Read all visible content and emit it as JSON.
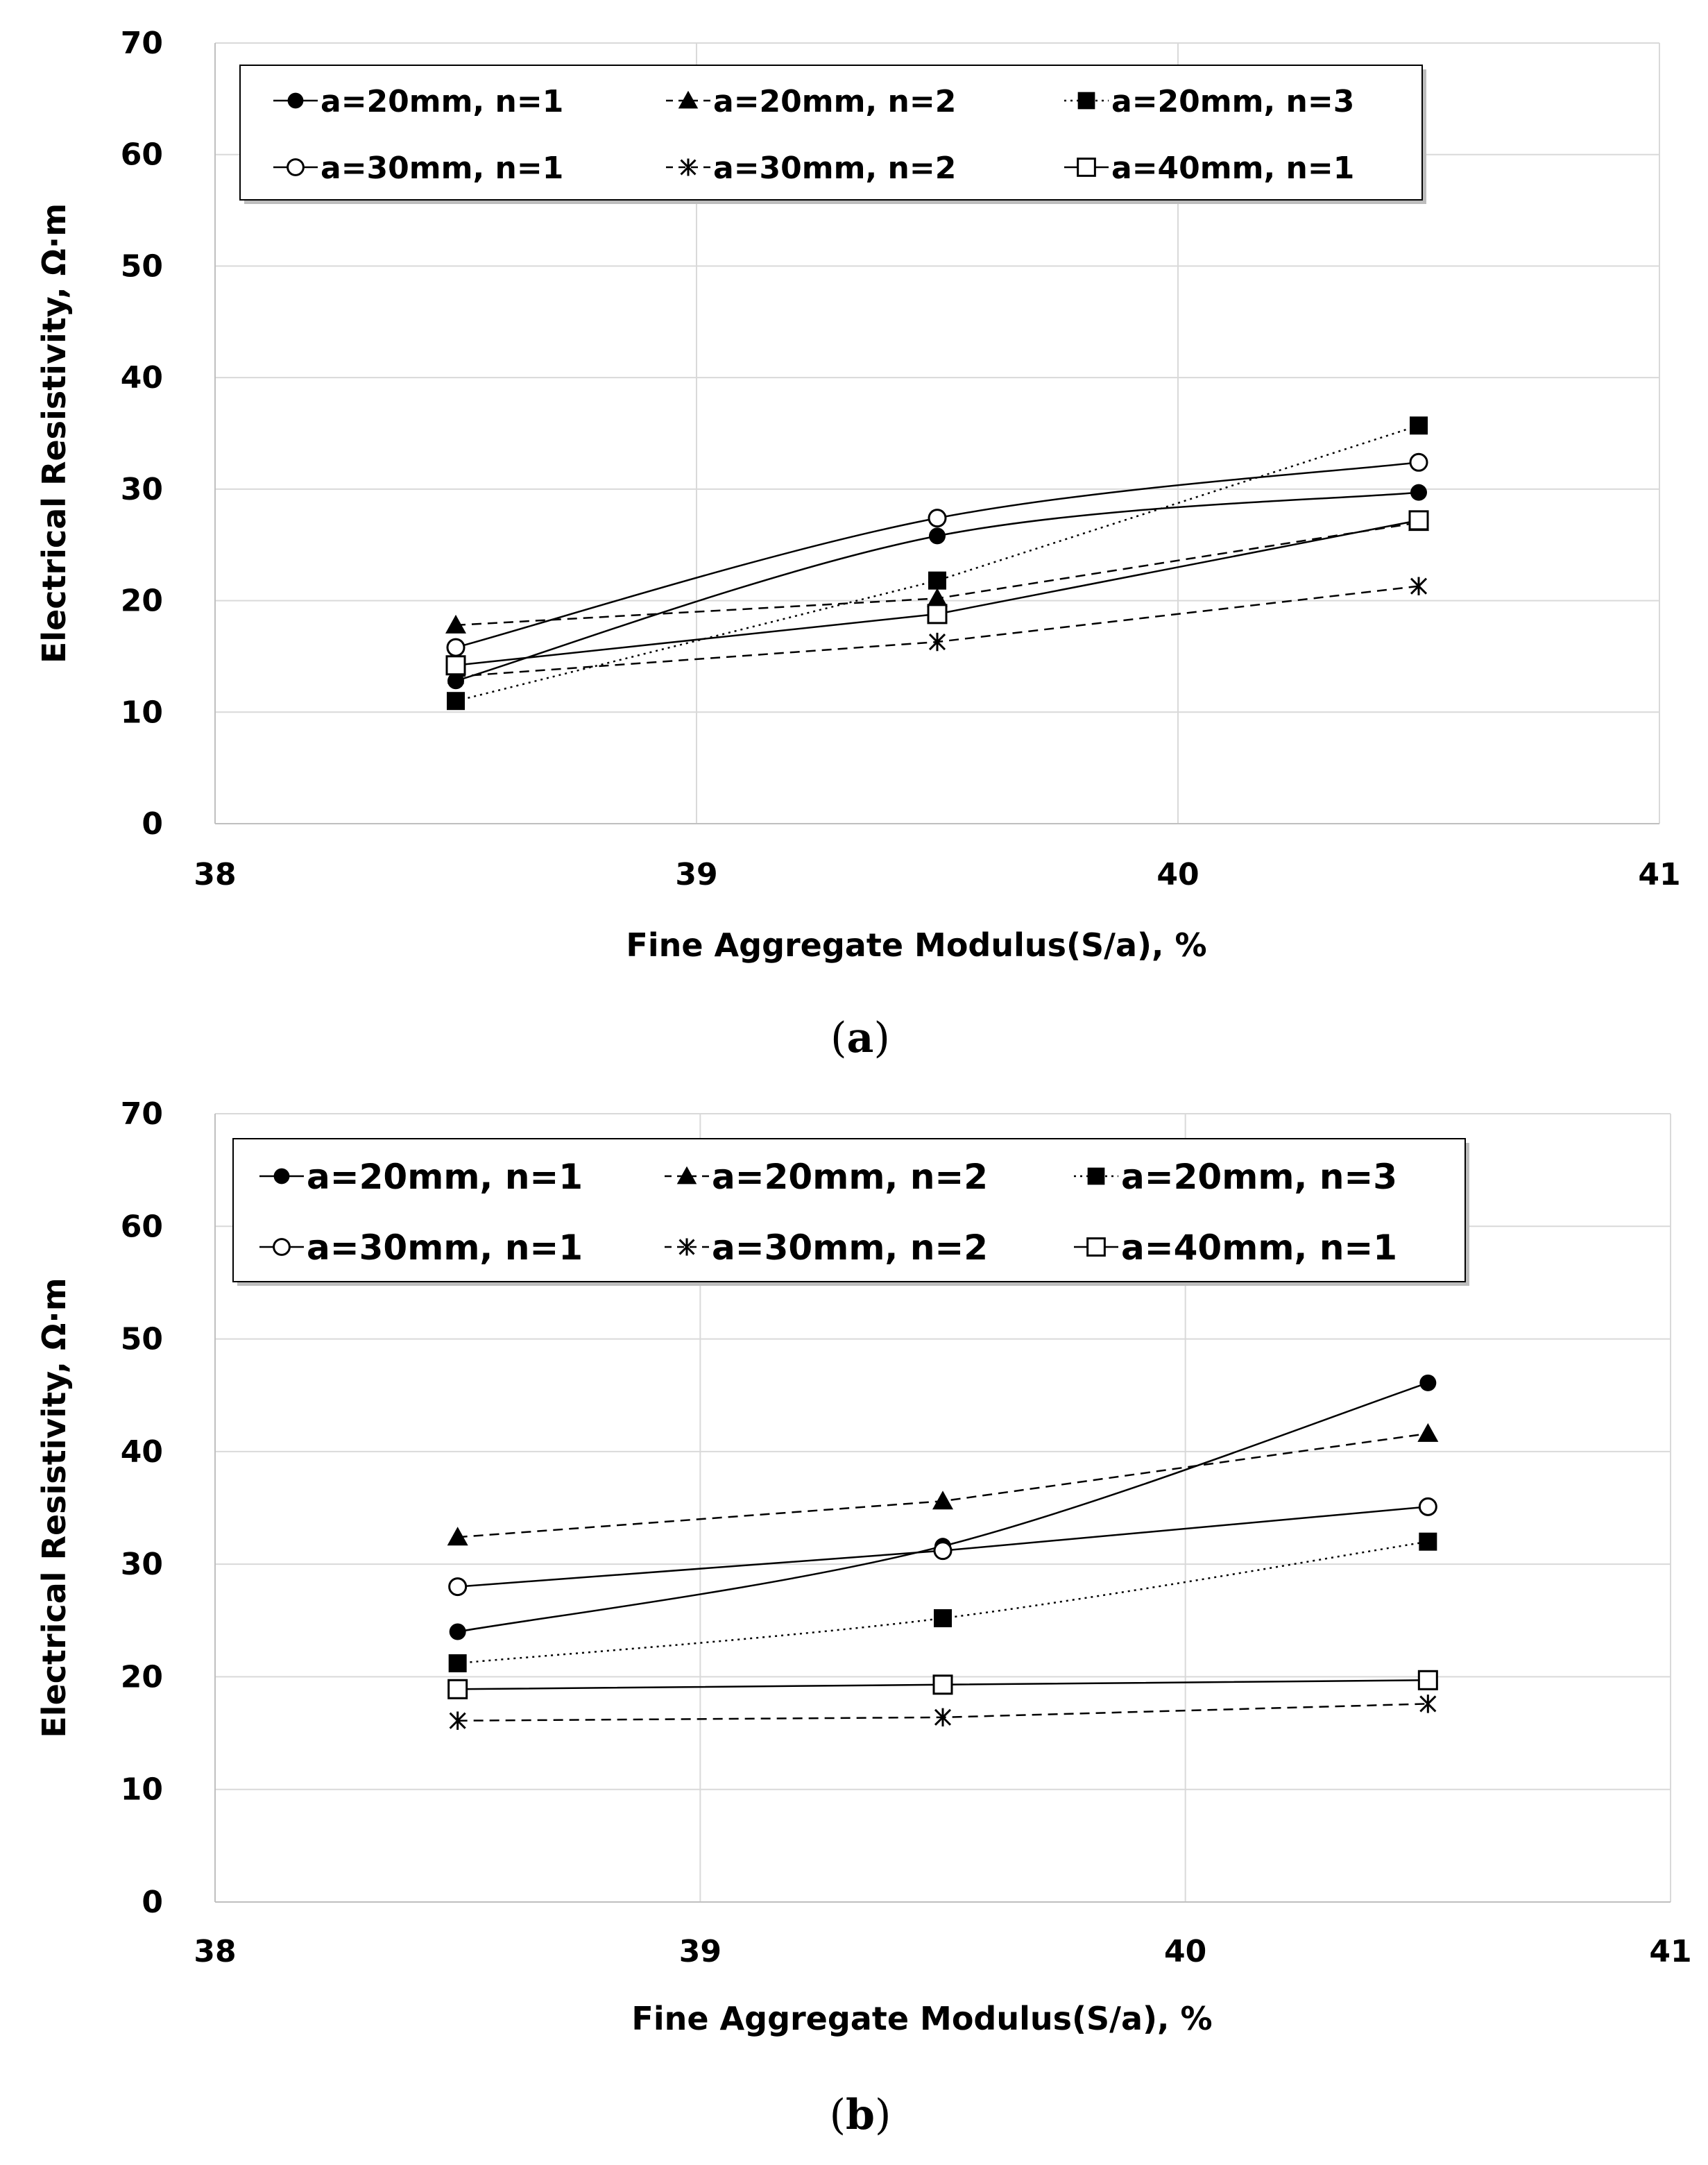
{
  "chart_data": [
    {
      "type": "line",
      "caption_open": "(",
      "caption_letter": "a",
      "caption_close": ")",
      "xlabel": "Fine Aggregate Modulus(S/a), %",
      "ylabel": "Electrical Resistivity, Ω·m",
      "xlim": [
        38,
        41
      ],
      "ylim": [
        0,
        70
      ],
      "x_ticks": [
        "38",
        "39",
        "40",
        "41"
      ],
      "y_ticks": [
        "0",
        "10",
        "20",
        "30",
        "40",
        "50",
        "60",
        "70"
      ],
      "grid": true,
      "legend_position": "top",
      "x": [
        38.5,
        39.5,
        40.5
      ],
      "series": [
        {
          "name": "a=20mm, n=1",
          "values": [
            12.8,
            25.8,
            29.7
          ],
          "marker": "filled-circle",
          "line": "solid",
          "smooth": true
        },
        {
          "name": "a=20mm, n=2",
          "values": [
            17.8,
            20.2,
            27.0
          ],
          "marker": "filled-triangle",
          "line": "dashed",
          "smooth": false
        },
        {
          "name": "a=20mm, n=3",
          "values": [
            11.0,
            21.8,
            35.7
          ],
          "marker": "filled-square",
          "line": "dotted",
          "smooth": false
        },
        {
          "name": "a=30mm, n=1",
          "values": [
            15.8,
            27.4,
            32.4
          ],
          "marker": "open-circle",
          "line": "solid",
          "smooth": true
        },
        {
          "name": "a=30mm, n=2",
          "values": [
            13.2,
            16.3,
            21.3
          ],
          "marker": "asterisk",
          "line": "dashed",
          "smooth": false
        },
        {
          "name": "a=40mm, n=1",
          "values": [
            14.2,
            18.8,
            27.2
          ],
          "marker": "open-square",
          "line": "solid",
          "smooth": false
        }
      ]
    },
    {
      "type": "line",
      "caption_open": "(",
      "caption_letter": "b",
      "caption_close": ")",
      "xlabel": "Fine Aggregate Modulus(S/a), %",
      "ylabel": "Electrical Resistivity, Ω·m",
      "xlim": [
        38,
        41
      ],
      "ylim": [
        0,
        70
      ],
      "x_ticks": [
        "38",
        "39",
        "40",
        "41"
      ],
      "y_ticks": [
        "0",
        "10",
        "20",
        "30",
        "40",
        "50",
        "60",
        "70"
      ],
      "grid": true,
      "legend_position": "top",
      "x": [
        38.5,
        39.5,
        40.5
      ],
      "series": [
        {
          "name": "a=20mm, n=1",
          "values": [
            24.0,
            31.6,
            46.1
          ],
          "marker": "filled-circle",
          "line": "solid",
          "smooth": true
        },
        {
          "name": "a=20mm, n=2",
          "values": [
            32.4,
            35.6,
            41.6
          ],
          "marker": "filled-triangle",
          "line": "dashed",
          "smooth": false
        },
        {
          "name": "a=20mm, n=3",
          "values": [
            21.2,
            25.2,
            32.0
          ],
          "marker": "filled-square",
          "line": "dotted",
          "smooth": true
        },
        {
          "name": "a=30mm, n=1",
          "values": [
            28.0,
            31.2,
            35.1
          ],
          "marker": "open-circle",
          "line": "solid",
          "smooth": false
        },
        {
          "name": "a=30mm, n=2",
          "values": [
            16.1,
            16.4,
            17.6
          ],
          "marker": "asterisk",
          "line": "dashed",
          "smooth": false
        },
        {
          "name": "a=40mm, n=1",
          "values": [
            18.9,
            19.3,
            19.7
          ],
          "marker": "open-square",
          "line": "solid",
          "smooth": false
        }
      ]
    }
  ]
}
